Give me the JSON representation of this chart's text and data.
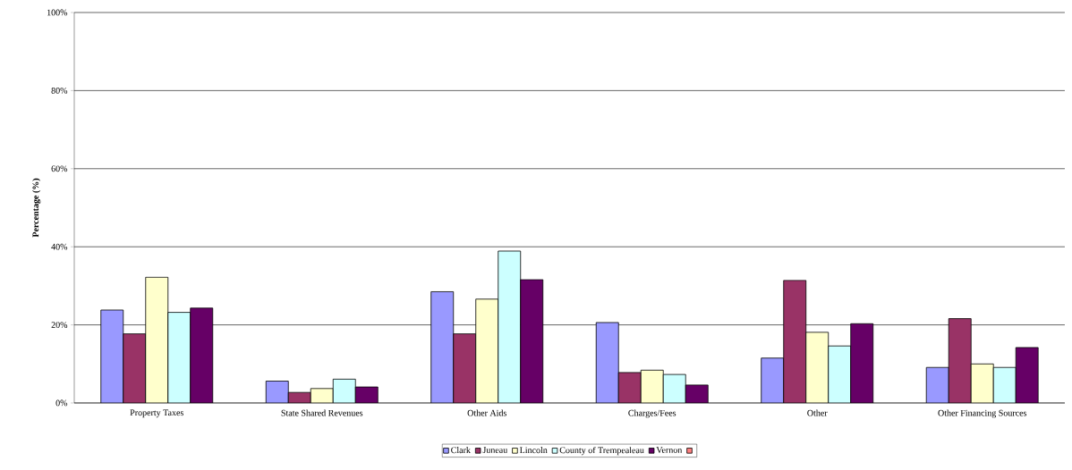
{
  "chart_data": {
    "type": "bar",
    "ylabel": "Percentage (%)",
    "categories": [
      "Property Taxes",
      "State Shared Revenues",
      "Other Aids",
      "Charges/Fees",
      "Other",
      "Other Financing Sources"
    ],
    "series": [
      {
        "name": "Clark",
        "color": "#9999ff",
        "values": [
          23.8,
          5.6,
          28.5,
          20.6,
          11.5,
          9.1
        ]
      },
      {
        "name": "Juneau",
        "color": "#993366",
        "values": [
          17.7,
          2.7,
          17.7,
          7.8,
          31.4,
          21.6
        ]
      },
      {
        "name": "Lincoln",
        "color": "#ffffcc",
        "values": [
          32.2,
          3.7,
          26.6,
          8.4,
          18.1,
          10.0
        ]
      },
      {
        "name": "County of Trempealeau",
        "color": "#ccffff",
        "values": [
          23.2,
          6.1,
          38.9,
          7.3,
          14.6,
          9.1
        ]
      },
      {
        "name": "Vernon",
        "color": "#660066",
        "values": [
          24.3,
          4.1,
          31.6,
          4.6,
          20.3,
          14.2
        ]
      },
      {
        "color": "#ff8080",
        "values": [
          null,
          null,
          null,
          null,
          null,
          null
        ]
      }
    ],
    "ylim": [
      0,
      100
    ],
    "yticks": [
      {
        "value": 0,
        "label": "0%"
      },
      {
        "value": 20,
        "label": "20%"
      },
      {
        "value": 40,
        "label": "40%"
      },
      {
        "value": 60,
        "label": "60%"
      },
      {
        "value": 80,
        "label": "80%"
      },
      {
        "value": 100,
        "label": "100%"
      }
    ],
    "grid": "y",
    "legend": "bottom"
  }
}
